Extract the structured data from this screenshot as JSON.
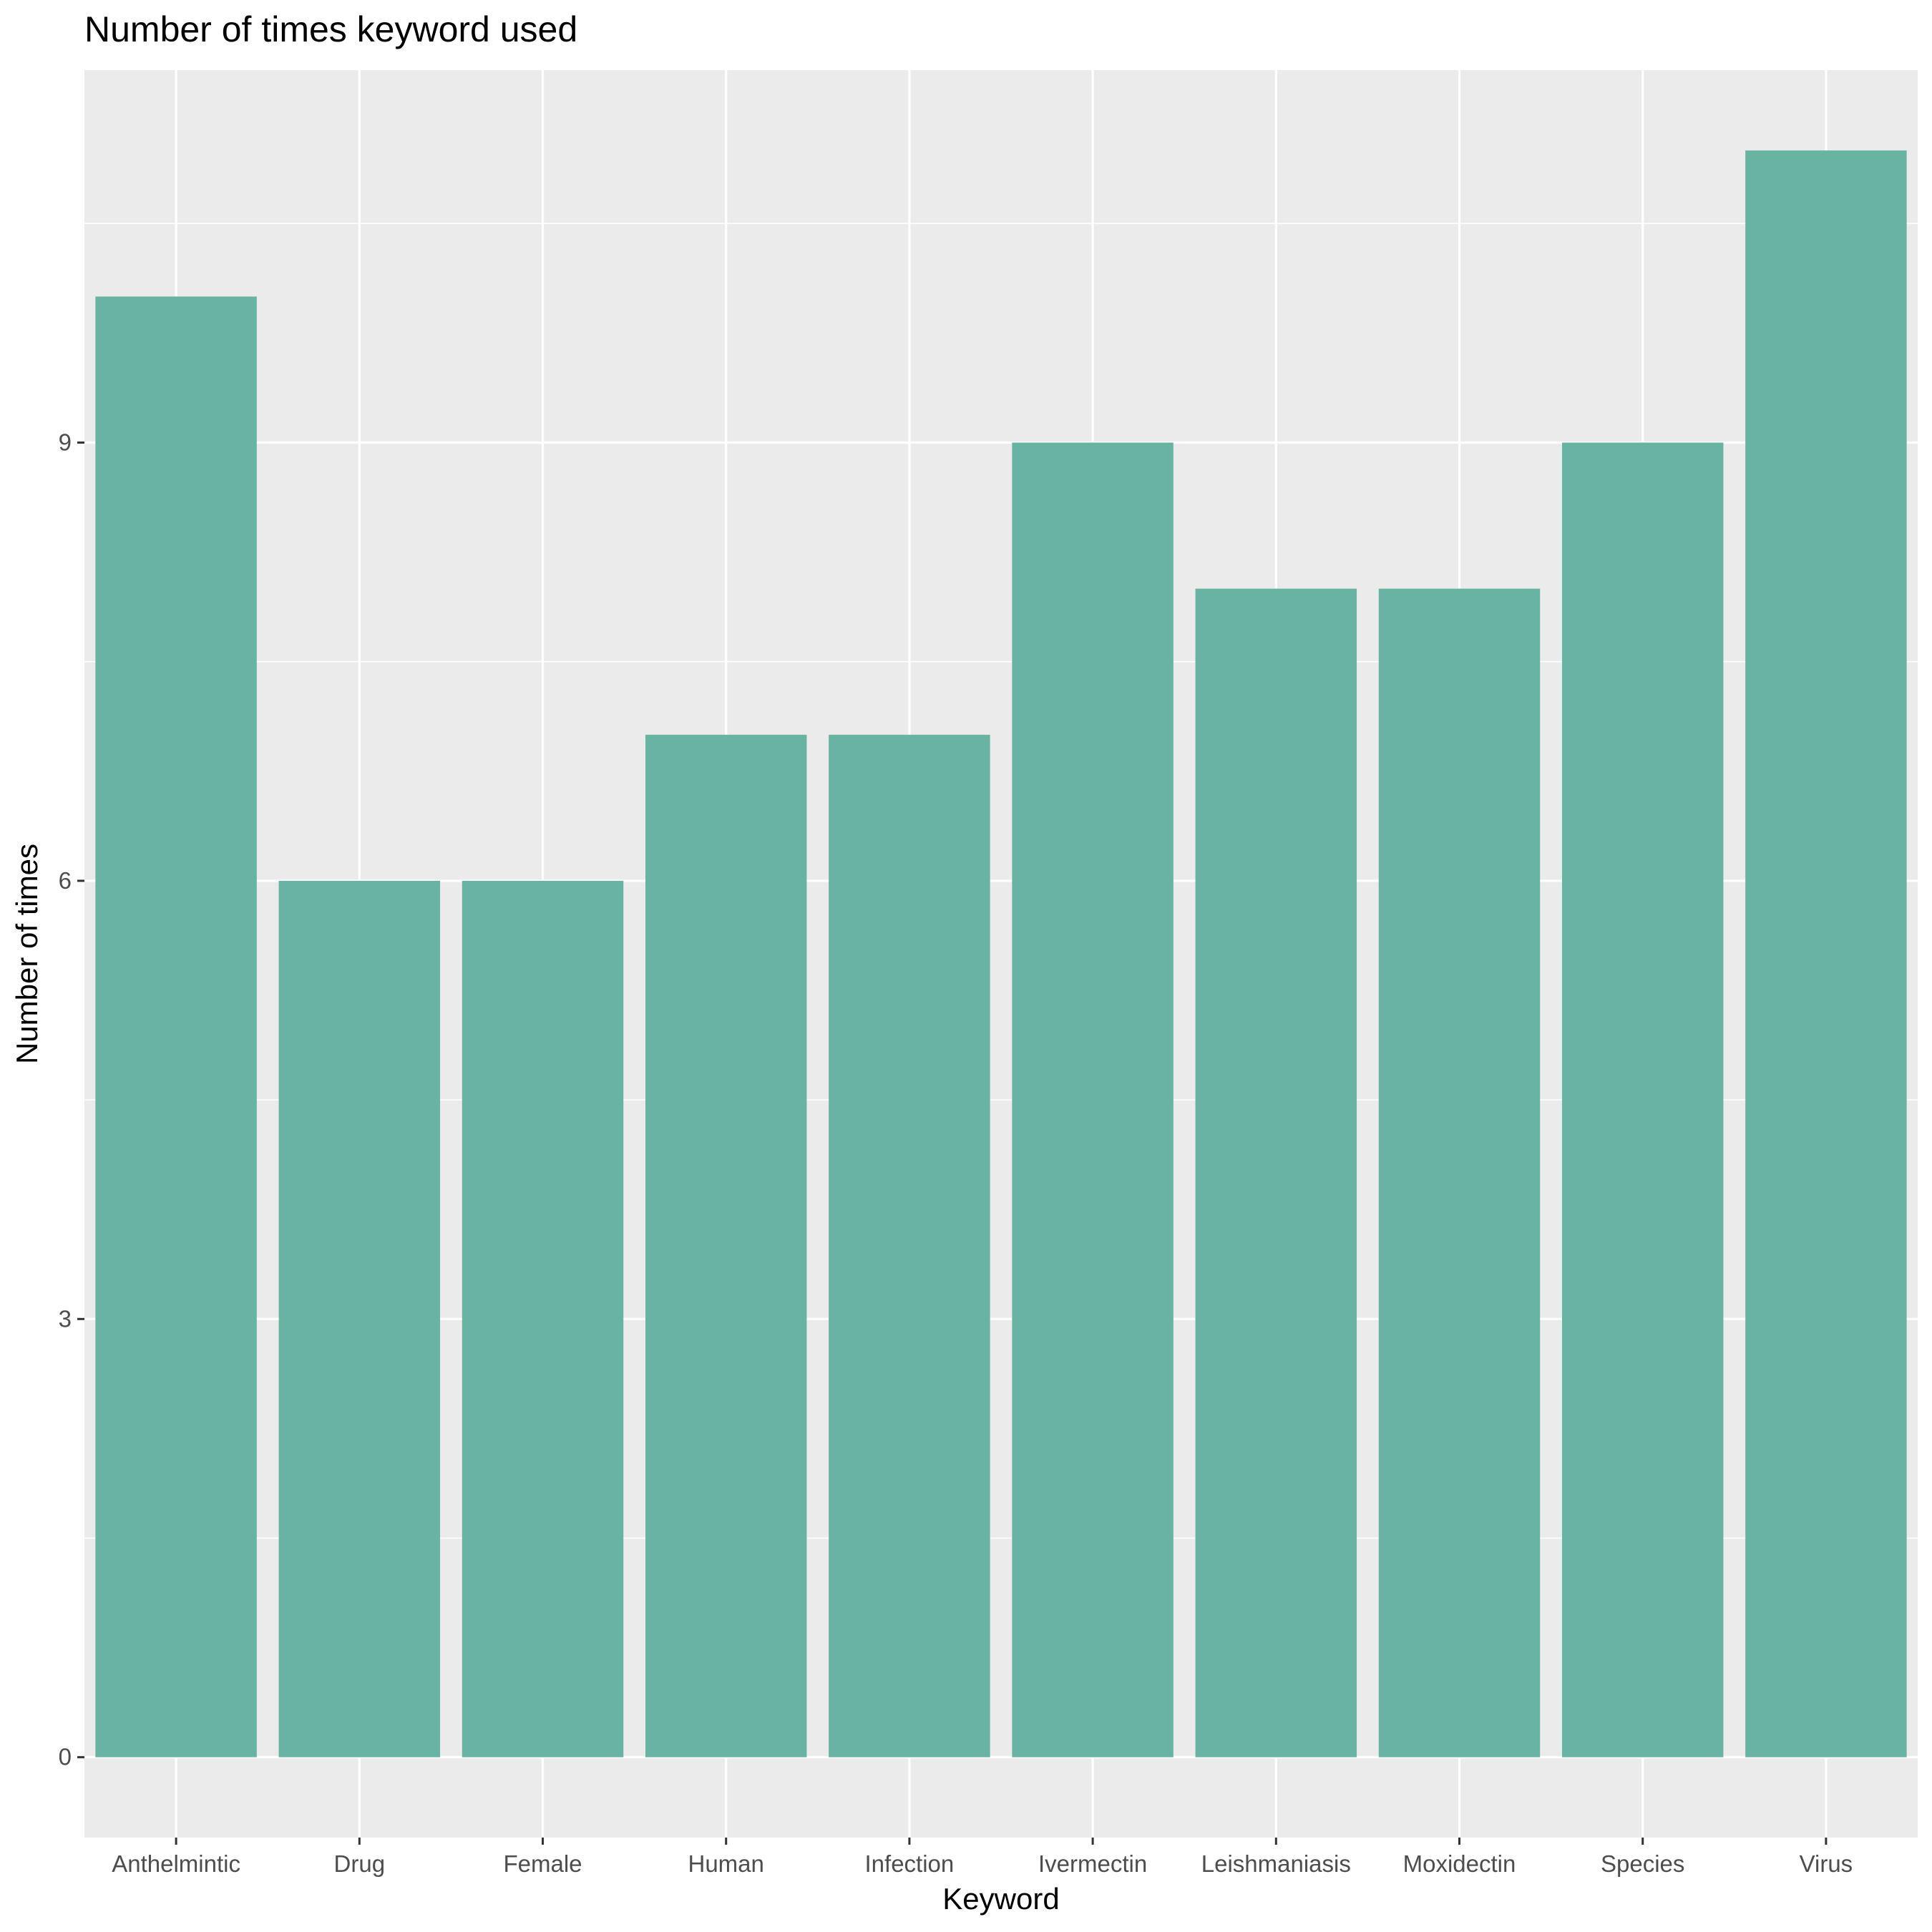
{
  "chart_data": {
    "type": "bar",
    "title": "Number of times keyword used",
    "xlabel": "Keyword",
    "ylabel": "Number of times",
    "categories": [
      "Anthelmintic",
      "Drug",
      "Female",
      "Human",
      "Infection",
      "Ivermectin",
      "Leishmaniasis",
      "Moxidectin",
      "Species",
      "Virus"
    ],
    "values": [
      10,
      6,
      6,
      7,
      7,
      9,
      8,
      8,
      9,
      11
    ],
    "yticks": [
      0,
      3,
      6,
      9
    ],
    "ylim": [
      -0.55,
      11.55
    ],
    "grid": true,
    "colors": {
      "bar": "#69b3a2",
      "panel": "#ebebeb",
      "grid": "#ffffff"
    }
  }
}
